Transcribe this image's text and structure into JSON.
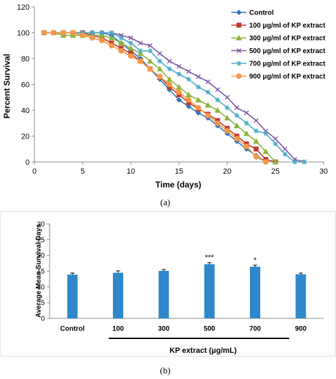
{
  "figures": {
    "caption_a": "(a)",
    "caption_b": "(b)"
  },
  "chart_data": [
    {
      "type": "line",
      "title": "",
      "xlabel": "Time (days)",
      "ylabel": "Percent Survival",
      "xlim": [
        0,
        30
      ],
      "ylim": [
        0,
        120
      ],
      "xticks": [
        0,
        5,
        10,
        15,
        20,
        25,
        30
      ],
      "yticks": [
        0,
        20,
        40,
        60,
        80,
        100,
        120
      ],
      "grid": false,
      "legend_position": "top-right",
      "series": [
        {
          "name": "Control",
          "color": "#2e75b6",
          "marker": "diamond",
          "x": [
            1,
            2,
            3,
            4,
            5,
            6,
            7,
            8,
            9,
            10,
            11,
            12,
            13,
            14,
            15,
            16,
            17,
            18,
            19,
            20,
            21,
            22,
            23,
            24
          ],
          "y": [
            100,
            100,
            100,
            100,
            100,
            100,
            100,
            98,
            92,
            86,
            80,
            72,
            64,
            56,
            48,
            43,
            38,
            34,
            28,
            22,
            16,
            10,
            5,
            0
          ]
        },
        {
          "name": "100 μg/ml of KP extract",
          "color": "#c0392b",
          "marker": "square",
          "x": [
            1,
            2,
            3,
            4,
            5,
            6,
            7,
            8,
            9,
            10,
            11,
            12,
            13,
            14,
            15,
            16,
            17,
            18,
            19,
            20,
            21,
            22,
            23,
            24,
            25
          ],
          "y": [
            100,
            100,
            100,
            100,
            100,
            98,
            96,
            92,
            88,
            84,
            78,
            72,
            66,
            58,
            52,
            46,
            41,
            37,
            32,
            26,
            20,
            14,
            10,
            2,
            0
          ]
        },
        {
          "name": "300 μg/ml of KP extract",
          "color": "#8db33a",
          "marker": "triangle",
          "x": [
            1,
            2,
            3,
            4,
            5,
            6,
            7,
            8,
            9,
            10,
            11,
            12,
            13,
            14,
            15,
            16,
            17,
            18,
            19,
            20,
            21,
            22,
            23,
            24,
            25
          ],
          "y": [
            100,
            100,
            98,
            98,
            98,
            98,
            98,
            96,
            92,
            88,
            84,
            78,
            72,
            64,
            58,
            52,
            48,
            44,
            40,
            34,
            28,
            22,
            16,
            8,
            0
          ]
        },
        {
          "name": "500 μg/ml of KP extract",
          "color": "#7e57a6",
          "marker": "x",
          "x": [
            1,
            2,
            3,
            4,
            5,
            6,
            7,
            8,
            9,
            10,
            11,
            12,
            13,
            14,
            15,
            16,
            17,
            18,
            19,
            20,
            21,
            22,
            23,
            24,
            25,
            26,
            27,
            28
          ],
          "y": [
            100,
            100,
            100,
            100,
            100,
            100,
            100,
            100,
            98,
            96,
            92,
            90,
            84,
            78,
            74,
            70,
            66,
            62,
            56,
            50,
            42,
            38,
            32,
            24,
            18,
            10,
            2,
            0
          ]
        },
        {
          "name": "700 μg/ml of KP extract",
          "color": "#4bacc6",
          "marker": "star",
          "x": [
            1,
            2,
            3,
            4,
            5,
            6,
            7,
            8,
            9,
            10,
            11,
            12,
            13,
            14,
            15,
            16,
            17,
            18,
            19,
            20,
            21,
            22,
            23,
            24,
            25,
            26,
            27,
            28
          ],
          "y": [
            100,
            100,
            100,
            100,
            100,
            100,
            100,
            100,
            96,
            92,
            86,
            86,
            78,
            72,
            68,
            64,
            58,
            54,
            48,
            42,
            36,
            30,
            24,
            22,
            14,
            6,
            0,
            0
          ]
        },
        {
          "name": "900 μg/ml of KP extract",
          "color": "#f79646",
          "marker": "circle",
          "x": [
            1,
            2,
            3,
            4,
            5,
            6,
            7,
            8,
            9,
            10,
            11,
            12,
            13,
            14,
            15,
            16,
            17,
            18,
            19,
            20,
            21,
            22,
            23,
            24
          ],
          "y": [
            100,
            100,
            100,
            100,
            98,
            96,
            94,
            90,
            86,
            82,
            78,
            72,
            66,
            60,
            54,
            48,
            42,
            36,
            30,
            24,
            18,
            12,
            4,
            0
          ]
        }
      ]
    },
    {
      "type": "bar",
      "title": "",
      "xlabel": "KP extract (μg/mL)",
      "ylabel": "Average Mean Survival Days",
      "ylim": [
        0,
        30
      ],
      "yticks": [
        0,
        5,
        10,
        15,
        20,
        25,
        30
      ],
      "grid": false,
      "bar_color": "#2e88c9",
      "categories": [
        "Control",
        "100",
        "300",
        "500",
        "700",
        "900"
      ],
      "values": [
        13.9,
        14.5,
        15.1,
        17.2,
        16.4,
        14.0
      ],
      "errors": [
        0.5,
        0.6,
        0.4,
        0.5,
        0.5,
        0.4
      ],
      "annotations": [
        "",
        "",
        "",
        "***",
        "*",
        ""
      ]
    }
  ]
}
